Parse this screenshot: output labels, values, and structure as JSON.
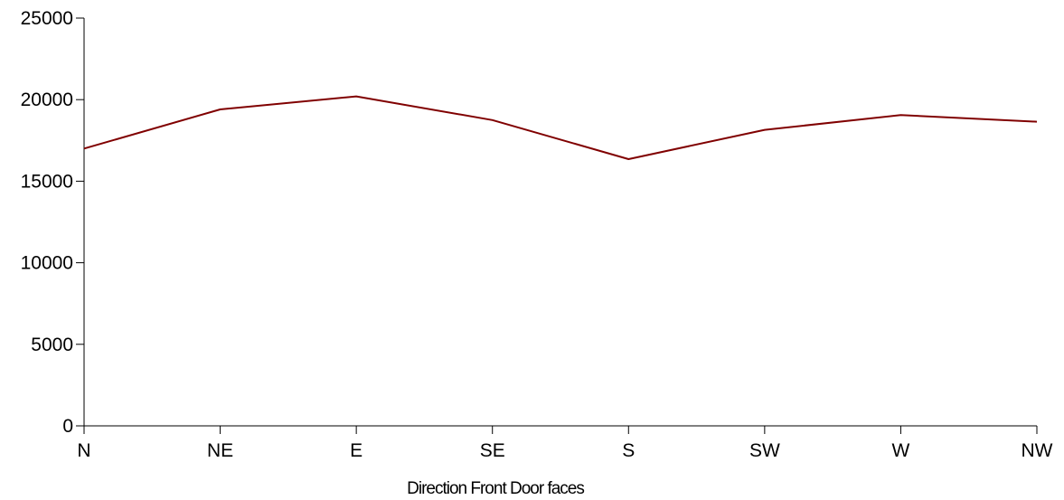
{
  "chart_data": {
    "type": "line",
    "title": "",
    "xlabel": "Direction Front Door faces",
    "ylabel": "",
    "categories": [
      "N",
      "NE",
      "E",
      "SE",
      "S",
      "SW",
      "W",
      "NW"
    ],
    "series": [
      {
        "values": [
          17000,
          19400,
          20200,
          18750,
          16350,
          18150,
          19050,
          18650
        ],
        "color": "#800000"
      }
    ],
    "ylim": [
      0,
      25000
    ],
    "yticks": [
      0,
      5000,
      10000,
      15000,
      20000,
      25000
    ],
    "grid": false,
    "legend": "none",
    "colors": {
      "line": "#800000",
      "axis": "#000000",
      "background": "#ffffff"
    }
  }
}
